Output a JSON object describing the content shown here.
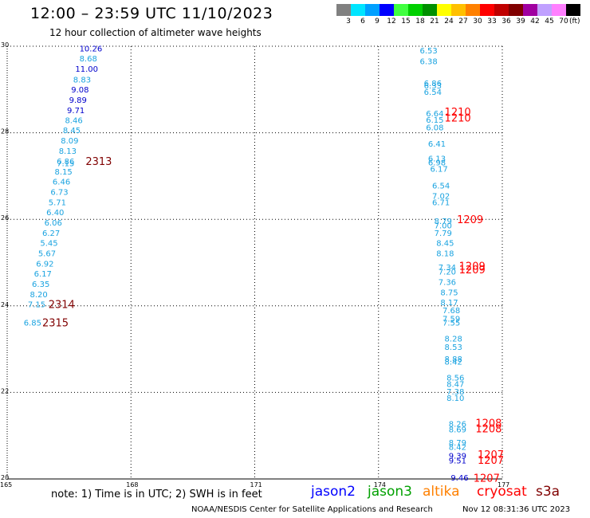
{
  "header": {
    "title": "12:00 – 23:59 UTC 11/10/2023",
    "subtitle": "12 hour collection of altimeter wave heights"
  },
  "legend": {
    "unit": "(ft)",
    "bins": [
      {
        "label": "3",
        "color": "#808080"
      },
      {
        "label": "6",
        "color": "#00e5ff"
      },
      {
        "label": "9",
        "color": "#00a0ff"
      },
      {
        "label": "12",
        "color": "#0000ff"
      },
      {
        "label": "15",
        "color": "#40ff40"
      },
      {
        "label": "18",
        "color": "#00d000"
      },
      {
        "label": "21",
        "color": "#009000"
      },
      {
        "label": "24",
        "color": "#ffff00"
      },
      {
        "label": "27",
        "color": "#ffc000"
      },
      {
        "label": "30",
        "color": "#ff8000"
      },
      {
        "label": "33",
        "color": "#ff0000"
      },
      {
        "label": "36",
        "color": "#c00000"
      },
      {
        "label": "39",
        "color": "#800000"
      },
      {
        "label": "42",
        "color": "#a000a0"
      },
      {
        "label": "45",
        "color": "#c0a0ff"
      },
      {
        "label": "70",
        "color": "#ff80ff"
      },
      {
        "label": "",
        "color": "#000000"
      }
    ]
  },
  "chart_data": {
    "type": "scatter",
    "title": "12:00 – 23:59 UTC 11/10/2023",
    "subtitle": "12 hour collection of altimeter wave heights",
    "xlim": [
      165,
      177
    ],
    "ylim": [
      20,
      30
    ],
    "x_ticks": [
      "165",
      "168",
      "171",
      "174",
      "177"
    ],
    "y_ticks": [
      "20",
      "22",
      "24",
      "26",
      "28",
      "30"
    ],
    "grid": true,
    "points": [
      {
        "x": 166.75,
        "y": 29.95,
        "label": "10.26",
        "color": "#0000cc"
      },
      {
        "x": 166.75,
        "y": 29.72,
        "label": "8.68",
        "color": "#1aa3e0"
      },
      {
        "x": 166.65,
        "y": 29.48,
        "label": "11.00",
        "color": "#0000cc"
      },
      {
        "x": 166.6,
        "y": 29.24,
        "label": "8.83",
        "color": "#1aa3e0"
      },
      {
        "x": 166.55,
        "y": 29.01,
        "label": "9.08",
        "color": "#0000cc"
      },
      {
        "x": 166.5,
        "y": 28.77,
        "label": "9.89",
        "color": "#0000cc"
      },
      {
        "x": 166.45,
        "y": 28.53,
        "label": "9.71",
        "color": "#0000cc"
      },
      {
        "x": 166.4,
        "y": 28.3,
        "label": "8.46",
        "color": "#1aa3e0"
      },
      {
        "x": 166.35,
        "y": 28.07,
        "label": "8.45",
        "color": "#1aa3e0"
      },
      {
        "x": 166.3,
        "y": 27.83,
        "label": "8.09",
        "color": "#1aa3e0"
      },
      {
        "x": 166.25,
        "y": 27.59,
        "label": "8.13",
        "color": "#1aa3e0"
      },
      {
        "x": 166.2,
        "y": 27.35,
        "label": "6.86",
        "color": "#1aa3e0"
      },
      {
        "x": 166.2,
        "y": 27.3,
        "label": "7.15",
        "color": "#1aa3e0"
      },
      {
        "x": 166.15,
        "y": 27.11,
        "label": "8.15",
        "color": "#1aa3e0"
      },
      {
        "x": 166.1,
        "y": 26.88,
        "label": "6.46",
        "color": "#1aa3e0"
      },
      {
        "x": 166.05,
        "y": 26.64,
        "label": "6.73",
        "color": "#1aa3e0"
      },
      {
        "x": 166.0,
        "y": 26.4,
        "label": "5.71",
        "color": "#1aa3e0"
      },
      {
        "x": 165.95,
        "y": 26.17,
        "label": "6.40",
        "color": "#1aa3e0"
      },
      {
        "x": 165.9,
        "y": 25.93,
        "label": "6.06",
        "color": "#1aa3e0"
      },
      {
        "x": 165.85,
        "y": 25.69,
        "label": "6.27",
        "color": "#1aa3e0"
      },
      {
        "x": 165.8,
        "y": 25.46,
        "label": "5.45",
        "color": "#1aa3e0"
      },
      {
        "x": 165.75,
        "y": 25.22,
        "label": "5.67",
        "color": "#1aa3e0"
      },
      {
        "x": 165.7,
        "y": 24.98,
        "label": "6.92",
        "color": "#1aa3e0"
      },
      {
        "x": 165.65,
        "y": 24.75,
        "label": "6.17",
        "color": "#1aa3e0"
      },
      {
        "x": 165.6,
        "y": 24.51,
        "label": "6.35",
        "color": "#1aa3e0"
      },
      {
        "x": 165.55,
        "y": 24.27,
        "label": "8.20",
        "color": "#1aa3e0"
      },
      {
        "x": 165.5,
        "y": 24.04,
        "label": "7.15",
        "color": "#1aa3e0"
      },
      {
        "x": 165.4,
        "y": 23.62,
        "label": "6.85",
        "color": "#1aa3e0"
      },
      {
        "x": 166.9,
        "y": 27.35,
        "label": "2313",
        "color": "#800000",
        "big": true
      },
      {
        "x": 166.0,
        "y": 24.04,
        "label": "2314",
        "color": "#800000",
        "big": true
      },
      {
        "x": 165.85,
        "y": 23.62,
        "label": "2315",
        "color": "#800000",
        "big": true
      },
      {
        "x": 175.0,
        "y": 29.91,
        "label": "6.53",
        "color": "#1aa3e0"
      },
      {
        "x": 175.0,
        "y": 29.66,
        "label": "6.38",
        "color": "#1aa3e0"
      },
      {
        "x": 175.1,
        "y": 29.15,
        "label": "6.86",
        "color": "#1aa3e0"
      },
      {
        "x": 175.1,
        "y": 29.1,
        "label": "6.33",
        "color": "#1aa3e0"
      },
      {
        "x": 175.1,
        "y": 28.95,
        "label": "6.54",
        "color": "#1aa3e0"
      },
      {
        "x": 175.15,
        "y": 28.45,
        "label": "6.64",
        "color": "#1aa3e0"
      },
      {
        "x": 175.15,
        "y": 28.31,
        "label": "6.15",
        "color": "#1aa3e0"
      },
      {
        "x": 175.15,
        "y": 28.13,
        "label": "6.08",
        "color": "#1aa3e0"
      },
      {
        "x": 175.2,
        "y": 27.75,
        "label": "6.41",
        "color": "#1aa3e0"
      },
      {
        "x": 175.2,
        "y": 27.41,
        "label": "6.13",
        "color": "#1aa3e0"
      },
      {
        "x": 175.2,
        "y": 27.32,
        "label": "6.98",
        "color": "#1aa3e0"
      },
      {
        "x": 175.25,
        "y": 27.17,
        "label": "6.17",
        "color": "#1aa3e0"
      },
      {
        "x": 175.3,
        "y": 26.79,
        "label": "6.54",
        "color": "#1aa3e0"
      },
      {
        "x": 175.3,
        "y": 26.55,
        "label": "7.02",
        "color": "#1aa3e0"
      },
      {
        "x": 175.3,
        "y": 26.4,
        "label": "6.71",
        "color": "#1aa3e0"
      },
      {
        "x": 175.35,
        "y": 25.97,
        "label": "8.79",
        "color": "#1aa3e0"
      },
      {
        "x": 175.35,
        "y": 25.87,
        "label": "7.00",
        "color": "#1aa3e0"
      },
      {
        "x": 175.35,
        "y": 25.69,
        "label": "7.79",
        "color": "#1aa3e0"
      },
      {
        "x": 175.4,
        "y": 25.46,
        "label": "8.45",
        "color": "#1aa3e0"
      },
      {
        "x": 175.4,
        "y": 25.22,
        "label": "8.18",
        "color": "#1aa3e0"
      },
      {
        "x": 175.45,
        "y": 24.9,
        "label": "7.34",
        "color": "#1aa3e0"
      },
      {
        "x": 175.45,
        "y": 24.8,
        "label": "7.20",
        "color": "#1aa3e0"
      },
      {
        "x": 175.45,
        "y": 24.56,
        "label": "7.36",
        "color": "#1aa3e0"
      },
      {
        "x": 175.5,
        "y": 24.32,
        "label": "8.75",
        "color": "#1aa3e0"
      },
      {
        "x": 175.5,
        "y": 24.09,
        "label": "8.17",
        "color": "#1aa3e0"
      },
      {
        "x": 175.55,
        "y": 23.9,
        "label": "7.68",
        "color": "#1aa3e0"
      },
      {
        "x": 175.55,
        "y": 23.71,
        "label": "7.59",
        "color": "#1aa3e0"
      },
      {
        "x": 175.55,
        "y": 23.62,
        "label": "7.55",
        "color": "#1aa3e0"
      },
      {
        "x": 175.6,
        "y": 23.25,
        "label": "8.28",
        "color": "#1aa3e0"
      },
      {
        "x": 175.6,
        "y": 23.06,
        "label": "8.53",
        "color": "#1aa3e0"
      },
      {
        "x": 175.6,
        "y": 22.78,
        "label": "8.88",
        "color": "#1aa3e0"
      },
      {
        "x": 175.6,
        "y": 22.72,
        "label": "8.42",
        "color": "#1aa3e0"
      },
      {
        "x": 175.65,
        "y": 22.35,
        "label": "8.56",
        "color": "#1aa3e0"
      },
      {
        "x": 175.65,
        "y": 22.2,
        "label": "8.47",
        "color": "#1aa3e0"
      },
      {
        "x": 175.65,
        "y": 22.03,
        "label": "7.38",
        "color": "#1aa3e0"
      },
      {
        "x": 175.65,
        "y": 21.88,
        "label": "8.10",
        "color": "#1aa3e0"
      },
      {
        "x": 175.7,
        "y": 21.28,
        "label": "8.26",
        "color": "#1aa3e0"
      },
      {
        "x": 175.7,
        "y": 21.15,
        "label": "8.69",
        "color": "#1aa3e0"
      },
      {
        "x": 175.7,
        "y": 20.85,
        "label": "8.79",
        "color": "#1aa3e0"
      },
      {
        "x": 175.7,
        "y": 20.75,
        "label": "8.42",
        "color": "#1aa3e0"
      },
      {
        "x": 175.7,
        "y": 20.54,
        "label": "9.39",
        "color": "#0000cc"
      },
      {
        "x": 175.7,
        "y": 20.43,
        "label": "9.51",
        "color": "#0000cc"
      },
      {
        "x": 175.75,
        "y": 20.04,
        "label": "9.46",
        "color": "#0000cc"
      },
      {
        "x": 175.6,
        "y": 28.49,
        "label": "1210",
        "color": "#ff0000",
        "big": true
      },
      {
        "x": 175.6,
        "y": 28.35,
        "label": "1210",
        "color": "#ff0000",
        "big": true
      },
      {
        "x": 175.9,
        "y": 26.0,
        "label": "1209",
        "color": "#ff0000",
        "big": true
      },
      {
        "x": 175.95,
        "y": 24.93,
        "label": "1209",
        "color": "#ff0000",
        "big": true
      },
      {
        "x": 175.95,
        "y": 24.84,
        "label": "1209",
        "color": "#ff0000",
        "big": true
      },
      {
        "x": 176.35,
        "y": 21.3,
        "label": "1208",
        "color": "#ff0000",
        "big": true
      },
      {
        "x": 176.35,
        "y": 21.17,
        "label": "1208",
        "color": "#ff0000",
        "big": true
      },
      {
        "x": 176.4,
        "y": 20.57,
        "label": "1207",
        "color": "#ff0000",
        "big": true
      },
      {
        "x": 176.4,
        "y": 20.44,
        "label": "1207",
        "color": "#ff0000",
        "big": true
      },
      {
        "x": 176.3,
        "y": 20.03,
        "label": "1207",
        "color": "#ff0000",
        "big": true
      }
    ]
  },
  "footer": {
    "note": "note: 1) Time is in UTC; 2) SWH is in feet",
    "credit": "NOAA/NESDIS Center for Satellite Applications and Research",
    "timestamp": "Nov 12 08:31:36 UTC 2023",
    "satellites": [
      {
        "name": "jason2",
        "color": "#0000ff"
      },
      {
        "name": "jason3",
        "color": "#00a000"
      },
      {
        "name": "altika",
        "color": "#ff8000"
      },
      {
        "name": "cryosat",
        "color": "#ff0000"
      },
      {
        "name": "s3a",
        "color": "#800000"
      }
    ]
  }
}
